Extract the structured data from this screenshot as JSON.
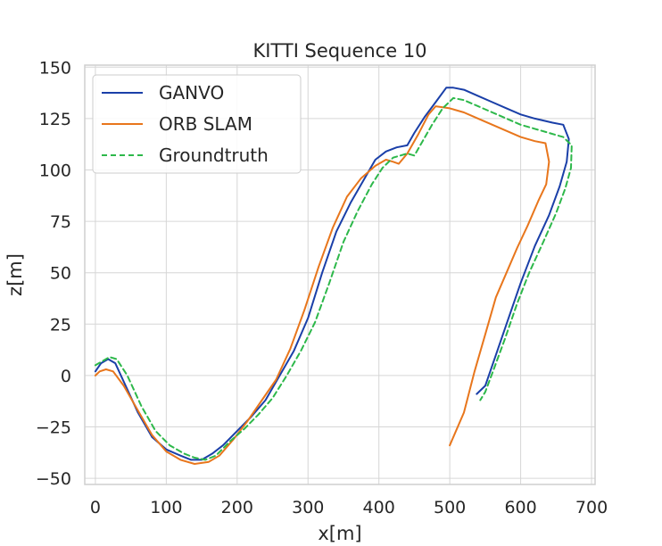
{
  "chart_data": {
    "type": "line",
    "title": "KITTI Sequence 10",
    "xlabel": "x[m]",
    "ylabel": "z[m]",
    "xlim": [
      -15,
      705
    ],
    "ylim": [
      -53,
      151
    ],
    "xticks": [
      0,
      100,
      200,
      300,
      400,
      500,
      600,
      700
    ],
    "yticks": [
      -50,
      -25,
      0,
      25,
      50,
      75,
      100,
      125,
      150
    ],
    "xtick_labels": [
      "0",
      "100",
      "200",
      "300",
      "400",
      "500",
      "600",
      "700"
    ],
    "ytick_labels": [
      "−50",
      "−25",
      "0",
      "25",
      "50",
      "75",
      "100",
      "125",
      "150"
    ],
    "grid": true,
    "legend_position": "top-left",
    "series": [
      {
        "name": "GANVO",
        "color": "#1a3fa8",
        "style": "solid",
        "points": [
          [
            0,
            2
          ],
          [
            8,
            6
          ],
          [
            18,
            8
          ],
          [
            28,
            6
          ],
          [
            40,
            -3
          ],
          [
            60,
            -18
          ],
          [
            80,
            -30
          ],
          [
            100,
            -36
          ],
          [
            120,
            -39
          ],
          [
            135,
            -41
          ],
          [
            150,
            -41
          ],
          [
            165,
            -38
          ],
          [
            180,
            -34
          ],
          [
            200,
            -27
          ],
          [
            220,
            -20
          ],
          [
            240,
            -12
          ],
          [
            260,
            0
          ],
          [
            280,
            12
          ],
          [
            300,
            28
          ],
          [
            320,
            50
          ],
          [
            340,
            70
          ],
          [
            360,
            84
          ],
          [
            380,
            96
          ],
          [
            395,
            105
          ],
          [
            410,
            109
          ],
          [
            425,
            111
          ],
          [
            440,
            112
          ],
          [
            450,
            118
          ],
          [
            465,
            126
          ],
          [
            480,
            133
          ],
          [
            495,
            140
          ],
          [
            505,
            140
          ],
          [
            520,
            139
          ],
          [
            540,
            136
          ],
          [
            560,
            133
          ],
          [
            580,
            130
          ],
          [
            600,
            127
          ],
          [
            620,
            125
          ],
          [
            645,
            123
          ],
          [
            660,
            122
          ],
          [
            668,
            115
          ],
          [
            665,
            104
          ],
          [
            655,
            92
          ],
          [
            640,
            78
          ],
          [
            620,
            63
          ],
          [
            600,
            45
          ],
          [
            580,
            25
          ],
          [
            565,
            10
          ],
          [
            550,
            -5
          ],
          [
            538,
            -9
          ]
        ]
      },
      {
        "name": "ORB SLAM",
        "color": "#e8761c",
        "style": "solid",
        "points": [
          [
            0,
            0
          ],
          [
            6,
            2
          ],
          [
            15,
            3
          ],
          [
            25,
            2
          ],
          [
            40,
            -5
          ],
          [
            60,
            -17
          ],
          [
            80,
            -29
          ],
          [
            100,
            -37
          ],
          [
            120,
            -41
          ],
          [
            140,
            -43
          ],
          [
            160,
            -42
          ],
          [
            175,
            -39
          ],
          [
            195,
            -31
          ],
          [
            215,
            -22
          ],
          [
            235,
            -12
          ],
          [
            255,
            -2
          ],
          [
            275,
            13
          ],
          [
            295,
            32
          ],
          [
            315,
            53
          ],
          [
            335,
            72
          ],
          [
            355,
            87
          ],
          [
            375,
            96
          ],
          [
            395,
            102
          ],
          [
            410,
            105
          ],
          [
            420,
            104
          ],
          [
            428,
            103
          ],
          [
            440,
            108
          ],
          [
            455,
            117
          ],
          [
            470,
            127
          ],
          [
            480,
            131
          ],
          [
            500,
            130
          ],
          [
            520,
            128
          ],
          [
            540,
            125
          ],
          [
            560,
            122
          ],
          [
            580,
            119
          ],
          [
            600,
            116
          ],
          [
            620,
            114
          ],
          [
            635,
            113
          ],
          [
            640,
            104
          ],
          [
            636,
            93
          ],
          [
            625,
            85
          ],
          [
            610,
            73
          ],
          [
            595,
            62
          ],
          [
            580,
            50
          ],
          [
            565,
            38
          ],
          [
            550,
            20
          ],
          [
            535,
            2
          ],
          [
            520,
            -18
          ],
          [
            500,
            -34
          ]
        ]
      },
      {
        "name": "Groundtruth",
        "color": "#2db84a",
        "style": "dashed",
        "points": [
          [
            0,
            5
          ],
          [
            10,
            7
          ],
          [
            20,
            9
          ],
          [
            30,
            8
          ],
          [
            45,
            0
          ],
          [
            65,
            -15
          ],
          [
            85,
            -27
          ],
          [
            105,
            -34
          ],
          [
            125,
            -38
          ],
          [
            140,
            -40
          ],
          [
            155,
            -41
          ],
          [
            170,
            -39
          ],
          [
            190,
            -32
          ],
          [
            210,
            -26
          ],
          [
            230,
            -19
          ],
          [
            250,
            -11
          ],
          [
            270,
            0
          ],
          [
            290,
            12
          ],
          [
            310,
            26
          ],
          [
            330,
            45
          ],
          [
            350,
            65
          ],
          [
            370,
            80
          ],
          [
            390,
            93
          ],
          [
            405,
            101
          ],
          [
            420,
            106
          ],
          [
            440,
            108
          ],
          [
            450,
            107
          ],
          [
            460,
            113
          ],
          [
            475,
            122
          ],
          [
            490,
            130
          ],
          [
            505,
            135
          ],
          [
            520,
            134
          ],
          [
            540,
            131
          ],
          [
            560,
            128
          ],
          [
            580,
            125
          ],
          [
            600,
            122
          ],
          [
            620,
            120
          ],
          [
            640,
            118
          ],
          [
            660,
            116
          ],
          [
            672,
            112
          ],
          [
            671,
            101
          ],
          [
            663,
            91
          ],
          [
            650,
            79
          ],
          [
            632,
            65
          ],
          [
            612,
            50
          ],
          [
            595,
            35
          ],
          [
            578,
            18
          ],
          [
            562,
            3
          ],
          [
            550,
            -8
          ],
          [
            543,
            -12
          ]
        ]
      }
    ]
  }
}
